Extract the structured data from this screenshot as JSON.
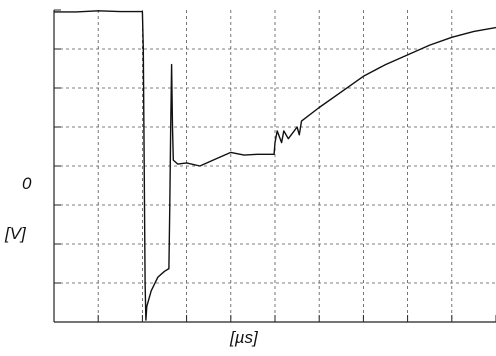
{
  "chart_data": {
    "type": "line",
    "title": "",
    "xlabel": "[µs]",
    "ylabel": "[V]",
    "zero_label": "0",
    "grid": true,
    "x_divisions": 10,
    "y_divisions": 8,
    "xlim": [
      0,
      10
    ],
    "ylim": [
      -4,
      4
    ],
    "line_color": "#111111",
    "grid_color": "#555555",
    "series": [
      {
        "name": "",
        "points": [
          [
            0.0,
            3.95
          ],
          [
            0.5,
            3.95
          ],
          [
            1.0,
            3.98
          ],
          [
            1.5,
            3.96
          ],
          [
            2.0,
            3.96
          ],
          [
            2.02,
            3.0
          ],
          [
            2.04,
            0.0
          ],
          [
            2.06,
            -3.0
          ],
          [
            2.08,
            -3.95
          ],
          [
            2.1,
            -3.6
          ],
          [
            2.2,
            -3.2
          ],
          [
            2.35,
            -2.85
          ],
          [
            2.5,
            -2.7
          ],
          [
            2.6,
            -2.63
          ],
          [
            2.62,
            -1.0
          ],
          [
            2.64,
            1.0
          ],
          [
            2.66,
            2.6
          ],
          [
            2.68,
            1.0
          ],
          [
            2.7,
            0.15
          ],
          [
            2.8,
            0.05
          ],
          [
            3.0,
            0.08
          ],
          [
            3.3,
            0.0
          ],
          [
            3.6,
            0.15
          ],
          [
            4.0,
            0.35
          ],
          [
            4.3,
            0.28
          ],
          [
            4.6,
            0.3
          ],
          [
            4.98,
            0.3
          ],
          [
            5.0,
            0.6
          ],
          [
            5.05,
            0.9
          ],
          [
            5.15,
            0.6
          ],
          [
            5.2,
            0.9
          ],
          [
            5.3,
            0.7
          ],
          [
            5.4,
            0.85
          ],
          [
            5.5,
            1.0
          ],
          [
            5.55,
            0.8
          ],
          [
            5.6,
            1.15
          ],
          [
            6.0,
            1.5
          ],
          [
            6.5,
            1.9
          ],
          [
            7.0,
            2.3
          ],
          [
            7.5,
            2.6
          ],
          [
            8.0,
            2.85
          ],
          [
            8.5,
            3.1
          ],
          [
            9.0,
            3.3
          ],
          [
            9.5,
            3.45
          ],
          [
            10.0,
            3.55
          ]
        ]
      }
    ]
  }
}
